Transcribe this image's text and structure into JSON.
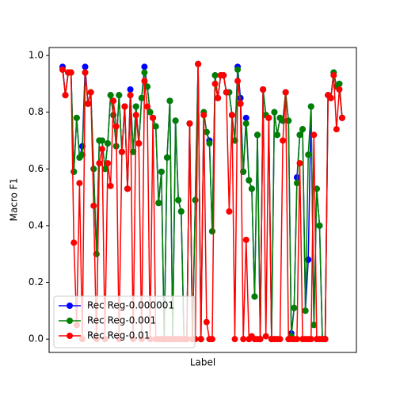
{
  "chart_data": {
    "type": "line",
    "xlabel": "Label",
    "ylabel": "Macro F1",
    "categories": [
      null,
      null,
      null,
      null,
      null,
      null,
      null,
      null,
      null,
      null,
      null,
      null,
      null,
      null,
      null,
      null,
      null,
      null,
      null,
      null,
      null,
      null,
      null,
      null,
      null,
      null,
      null,
      null,
      null,
      null,
      null,
      null,
      null,
      null,
      null,
      null,
      null,
      null,
      null,
      null,
      null,
      null,
      null,
      null,
      null,
      null,
      null,
      null,
      null,
      null,
      null,
      null,
      null,
      null,
      null,
      null,
      null,
      null,
      null,
      null,
      null,
      null,
      null,
      null,
      null,
      null,
      null,
      null,
      null,
      null,
      null,
      null,
      null,
      null,
      null,
      null,
      null,
      null,
      null,
      null,
      null,
      null,
      null,
      null,
      null,
      null,
      null,
      null,
      null,
      null,
      null,
      null,
      null,
      null,
      null,
      null,
      null,
      null,
      null,
      null
    ],
    "ylim": [
      -0.047,
      1.028
    ],
    "yticks": [
      {
        "value": 0,
        "label": "0.0"
      },
      {
        "value": 0.2,
        "label": "0.2"
      },
      {
        "value": 0.4,
        "label": "0.4"
      },
      {
        "value": 0.6,
        "label": "0.6"
      },
      {
        "value": 0.8,
        "label": "0.8"
      },
      {
        "value": 1,
        "label": "1.0"
      }
    ],
    "legend": "lower left",
    "series": [
      {
        "name": "Rec Reg-0.000001",
        "color": "#0000ff",
        "values": [
          0.96,
          0.86,
          0.94,
          0.94,
          0.59,
          0.78,
          0.64,
          0.68,
          0.96,
          0.83,
          0.87,
          0.6,
          0.3,
          0.7,
          0.7,
          0.6,
          0.69,
          0.86,
          0.79,
          0.68,
          0.86,
          0.66,
          0.82,
          0.53,
          0.88,
          0.66,
          0.82,
          0.69,
          0.85,
          0.96,
          0.89,
          0.8,
          0.78,
          0.75,
          0.48,
          0.59,
          0.0,
          0.64,
          0.84,
          0.0,
          0.77,
          0.49,
          0.45,
          0.0,
          0.0,
          0.76,
          0.0,
          0.49,
          0.97,
          0.0,
          0.8,
          0.73,
          0.7,
          0.38,
          0.93,
          0.85,
          0.93,
          0.93,
          0.87,
          0.87,
          0.79,
          0.7,
          0.96,
          0.85,
          0.59,
          0.78,
          0.56,
          0.53,
          0.15,
          0.72,
          0.0,
          0.88,
          0.79,
          0.78,
          0.0,
          0.8,
          0.72,
          0.78,
          0.77,
          0.87,
          0.77,
          0.02,
          0.11,
          0.57,
          0.72,
          0.74,
          0.1,
          0.28,
          0.82,
          0.05,
          0.53,
          0.4,
          0.0,
          0.0,
          0.86,
          0.85,
          0.94,
          0.89,
          0.9,
          0.78
        ]
      },
      {
        "name": "Rec Reg-0.001",
        "color": "#008000",
        "values": [
          0.95,
          0.86,
          0.94,
          0.94,
          0.59,
          0.78,
          0.64,
          0.65,
          0.94,
          0.83,
          0.87,
          0.6,
          0.3,
          0.7,
          0.7,
          0.6,
          0.69,
          0.86,
          0.79,
          0.68,
          0.86,
          0.66,
          0.82,
          0.53,
          0.86,
          0.66,
          0.82,
          0.69,
          0.85,
          0.94,
          0.89,
          0.8,
          0.78,
          0.75,
          0.48,
          0.59,
          0.0,
          0.64,
          0.84,
          0.0,
          0.77,
          0.49,
          0.45,
          0.0,
          0.0,
          0.76,
          0.0,
          0.49,
          0.97,
          0.0,
          0.8,
          0.73,
          0.69,
          0.38,
          0.93,
          0.85,
          0.93,
          0.93,
          0.87,
          0.87,
          0.79,
          0.7,
          0.95,
          0.83,
          0.59,
          0.76,
          0.56,
          0.53,
          0.15,
          0.72,
          0.0,
          0.88,
          0.79,
          0.78,
          0.0,
          0.8,
          0.72,
          0.78,
          0.77,
          0.87,
          0.77,
          0.01,
          0.11,
          0.55,
          0.72,
          0.74,
          0.1,
          0.65,
          0.82,
          0.05,
          0.53,
          0.4,
          0.0,
          0.0,
          0.86,
          0.85,
          0.94,
          0.89,
          0.9,
          0.78
        ]
      },
      {
        "name": "Rec Reg-0.01",
        "color": "#ff0000",
        "values": [
          0.95,
          0.86,
          0.94,
          0.94,
          0.34,
          0.05,
          0.55,
          0.0,
          0.94,
          0.83,
          0.87,
          0.47,
          0.0,
          0.62,
          0.67,
          0.0,
          0.62,
          0.54,
          0.84,
          0.75,
          0.0,
          0.66,
          0.82,
          0.53,
          0.86,
          0.0,
          0.79,
          0.69,
          0.0,
          0.91,
          0.82,
          0.0,
          0.78,
          0.0,
          0.0,
          0.0,
          0.0,
          0.0,
          0.0,
          0.0,
          0.0,
          0.0,
          0.0,
          0.0,
          0.0,
          0.76,
          0.0,
          0.0,
          0.97,
          0.0,
          0.79,
          0.06,
          0.0,
          0.0,
          0.9,
          0.85,
          0.93,
          0.93,
          0.87,
          0.45,
          0.79,
          0.0,
          0.91,
          0.83,
          0.0,
          0.35,
          0.0,
          0.01,
          0.0,
          0.0,
          0.0,
          0.88,
          0.01,
          0.78,
          0.0,
          0.0,
          0.0,
          0.0,
          0.7,
          0.87,
          0.0,
          0.0,
          0.0,
          0.0,
          0.62,
          0.0,
          0.0,
          0.0,
          0.0,
          0.72,
          0.0,
          0.0,
          0.0,
          0.0,
          0.86,
          0.85,
          0.93,
          0.74,
          0.88,
          0.78
        ]
      }
    ]
  }
}
